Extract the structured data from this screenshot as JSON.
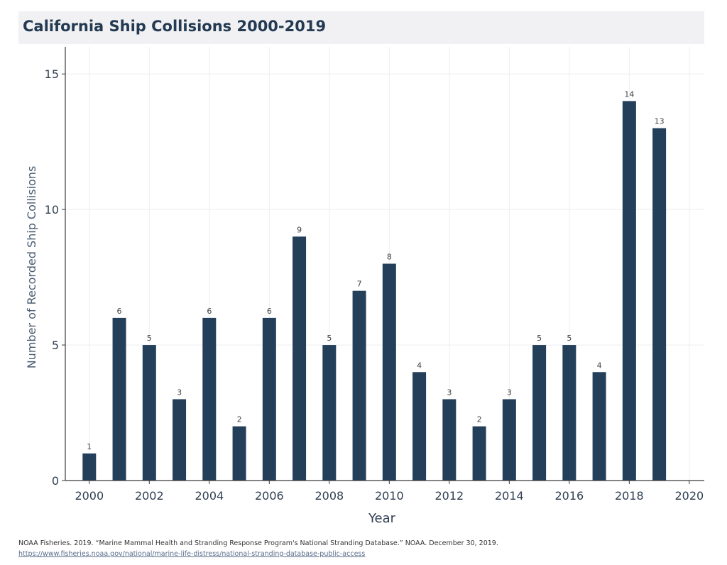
{
  "title": "California Ship Collisions 2000-2019",
  "colors": {
    "bar": "#243f5a",
    "axis_text": "#2f3f52",
    "grid": "#eceef1",
    "title_bg": "#f1f1f3"
  },
  "chart_data": {
    "type": "bar",
    "title": "California Ship Collisions 2000-2019",
    "xlabel": "Year",
    "ylabel": "Number of Recorded Ship Collisions",
    "x": [
      2000,
      2001,
      2002,
      2003,
      2004,
      2005,
      2006,
      2007,
      2008,
      2009,
      2010,
      2011,
      2012,
      2013,
      2014,
      2015,
      2016,
      2017,
      2018,
      2019
    ],
    "values": [
      1,
      6,
      5,
      3,
      6,
      2,
      6,
      9,
      5,
      7,
      8,
      4,
      3,
      2,
      3,
      5,
      5,
      4,
      14,
      13
    ],
    "data_labels": [
      "1",
      "6",
      "5",
      "3",
      "6",
      "2",
      "6",
      "9",
      "5",
      "7",
      "8",
      "4",
      "3",
      "2",
      "3",
      "5",
      "5",
      "4",
      "14",
      "13"
    ],
    "xlim": [
      1999.2,
      2020.5
    ],
    "ylim": [
      0,
      16
    ],
    "x_ticks": [
      2000,
      2002,
      2004,
      2006,
      2008,
      2010,
      2012,
      2014,
      2016,
      2018,
      2020
    ],
    "x_tick_labels": [
      "2000",
      "2002",
      "2004",
      "2006",
      "2008",
      "2010",
      "2012",
      "2014",
      "2016",
      "2018",
      "2020"
    ],
    "y_ticks": [
      0,
      5,
      10,
      15
    ],
    "y_tick_labels": [
      "0",
      "5",
      "10",
      "15"
    ],
    "grid": true,
    "legend": "none"
  },
  "footer": {
    "citation": "NOAA Fisheries. 2019. “Marine Mammal Health and Stranding Response Program's National Stranding Database.” NOAA. December 30, 2019.",
    "link": "https://www.fisheries.noaa.gov/national/marine-life-distress/national-stranding-database-public-access"
  }
}
